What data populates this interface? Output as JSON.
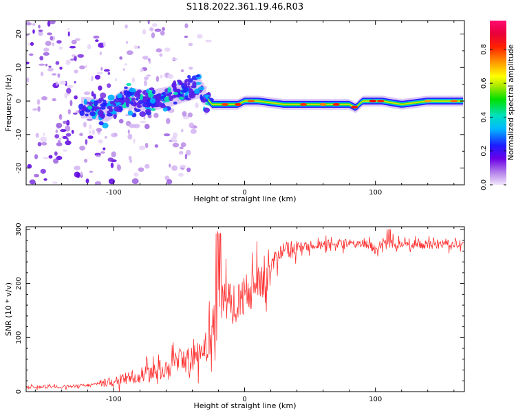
{
  "title": "S118.2022.361.19.46.R03",
  "chart_data": [
    {
      "type": "heatmap",
      "xlabel": "Height of straight line (km)",
      "ylabel": "Frequency (Hz)",
      "xlim": [
        -167,
        168
      ],
      "ylim": [
        -25,
        24
      ],
      "x_ticks": [
        -100,
        0,
        100
      ],
      "y_ticks": [
        -20,
        -10,
        0,
        10,
        20
      ],
      "colorbar": {
        "label": "Normalized spectral amplitude",
        "range": [
          0,
          0.97
        ],
        "ticks": [
          0.0,
          0.2,
          0.4,
          0.6,
          0.8
        ]
      },
      "ridge": {
        "x": [
          -120,
          -105,
          -90,
          -75,
          -60,
          -45,
          -35,
          -25,
          -15,
          -5,
          0,
          10,
          30,
          50,
          70,
          80,
          85,
          90,
          95,
          105,
          120,
          140,
          168
        ],
        "y": [
          -2,
          -3,
          1,
          0,
          1,
          3,
          4,
          -1,
          -1,
          -1,
          0,
          0,
          -1,
          -1,
          -1,
          -1,
          -2,
          0,
          0,
          0,
          -1,
          0,
          0
        ]
      }
    },
    {
      "type": "line",
      "xlabel": "Height of straight line (km)",
      "ylabel": "SNR (10 * v/v)",
      "xlim": [
        -167,
        168
      ],
      "ylim": [
        0,
        305
      ],
      "x_ticks": [
        -100,
        0,
        100
      ],
      "y_ticks": [
        0,
        100,
        200,
        300
      ],
      "color": "#ff3030",
      "envelope": {
        "x": [
          -167,
          -140,
          -120,
          -100,
          -90,
          -80,
          -70,
          -60,
          -50,
          -40,
          -30,
          -25,
          -20,
          -15,
          -10,
          -5,
          0,
          5,
          10,
          15,
          20,
          30,
          40,
          60,
          80,
          95,
          100,
          105,
          120,
          140,
          168
        ],
        "y": [
          8,
          9,
          12,
          18,
          25,
          30,
          35,
          45,
          55,
          60,
          80,
          110,
          150,
          170,
          160,
          170,
          175,
          190,
          200,
          215,
          235,
          258,
          268,
          272,
          274,
          272,
          262,
          275,
          272,
          272,
          273
        ]
      }
    }
  ]
}
